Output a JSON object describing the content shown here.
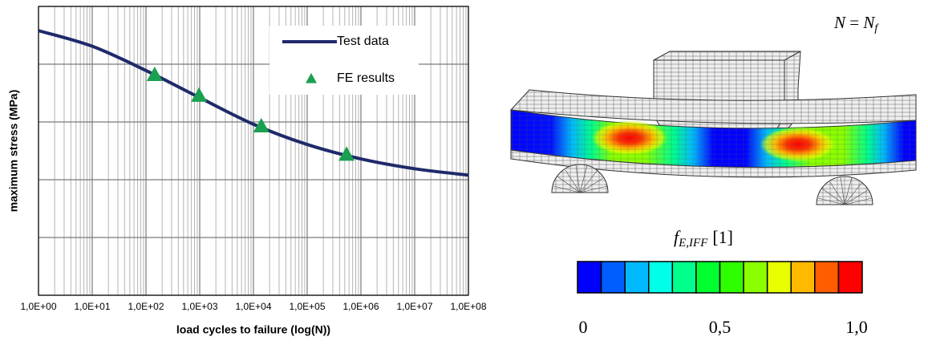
{
  "chart_data": {
    "type": "line",
    "xlabel": "load cycles to failure (log(N))",
    "ylabel": "maximum stress (MPa)",
    "xscale": "log",
    "xlim": [
      1,
      100000000
    ],
    "xticks": [
      {
        "value": 1,
        "label": "1,0E+00"
      },
      {
        "value": 10,
        "label": "1,0E+01"
      },
      {
        "value": 100,
        "label": "1,0E+02"
      },
      {
        "value": 1000,
        "label": "1,0E+03"
      },
      {
        "value": 10000,
        "label": "1,0E+04"
      },
      {
        "value": 100000,
        "label": "1,0E+05"
      },
      {
        "value": 1000000,
        "label": "1,0E+06"
      },
      {
        "value": 10000000,
        "label": "1,0E+07"
      },
      {
        "value": 100000000,
        "label": "1,0E+08"
      }
    ],
    "ylim": [
      0,
      5
    ],
    "yticks": [
      0,
      1,
      2,
      3,
      4,
      5
    ],
    "ytick_labels": false,
    "grid": true,
    "minor_grid": true,
    "legend": "upper right",
    "series": [
      {
        "name": "Test data",
        "color": "#1f2a6b",
        "marker": "none",
        "x": [
          1,
          10,
          100,
          1000,
          10000,
          100000,
          1000000,
          10000000,
          100000000
        ],
        "values": [
          4.58,
          4.31,
          3.89,
          3.42,
          2.96,
          2.61,
          2.36,
          2.19,
          2.08
        ]
      },
      {
        "name": "FE results",
        "color": "#1aa050",
        "marker": "triangle",
        "x": [
          145,
          970,
          14000,
          540000
        ],
        "values": [
          3.82,
          3.46,
          2.93,
          2.44
        ]
      }
    ]
  },
  "fe_figure": {
    "annotation": {
      "lhs": "N",
      "operator": "=",
      "rhs": "N",
      "rhs_subscript": "f"
    },
    "colorbar": {
      "symbol": "f",
      "subscript": "E,IFF",
      "unit": "[1]",
      "colors": [
        "#0000ff",
        "#005dff",
        "#00b9ff",
        "#00ffe8",
        "#00ff8b",
        "#00ff2e",
        "#2eff00",
        "#8bff00",
        "#e8ff00",
        "#ffb900",
        "#ff5d00",
        "#ff0000"
      ],
      "lim": [
        0,
        1
      ],
      "ticks": [
        {
          "value": 0,
          "label": "0"
        },
        {
          "value": 0.5,
          "label": "0,5"
        },
        {
          "value": 1,
          "label": "1,0"
        }
      ]
    }
  }
}
